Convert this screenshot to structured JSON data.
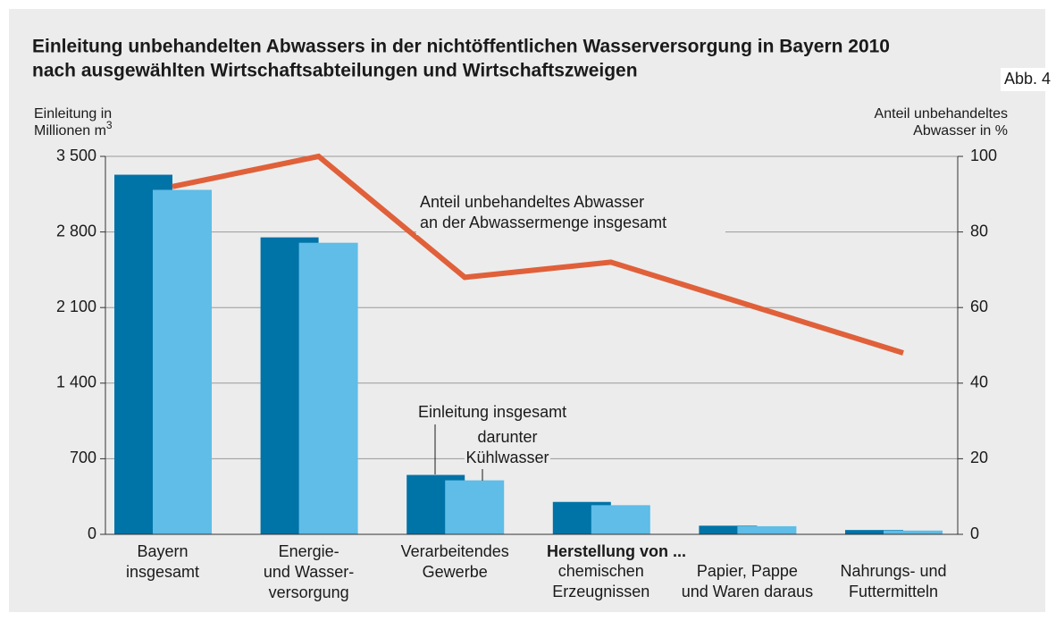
{
  "chart_data": {
    "type": "bar_line",
    "title": [
      "Einleitung unbehandelten Abwassers in der nichtöffentlichen Wasserversorgung in Bayern 2010",
      "nach ausgewählten Wirtschaftsabteilungen und Wirtschaftszweigen"
    ],
    "figure_label": "Abb. 4",
    "ylabel": [
      "Einleitung in",
      "Millionen m",
      "3"
    ],
    "y2label": [
      "Anteil unbehandeltes",
      "Abwasser in %"
    ],
    "group_annotation": "Herstellung von ...",
    "categories": [
      [
        "Bayern",
        "insgesamt"
      ],
      [
        "Energie-",
        "und Wasser-",
        "versorgung"
      ],
      [
        "Verarbeitendes",
        "Gewerbe"
      ],
      [
        "chemischen",
        "Erzeugnissen"
      ],
      [
        "Papier, Pappe",
        "und Waren daraus"
      ],
      [
        "Nahrungs- und",
        "Futtermitteln"
      ]
    ],
    "series": [
      {
        "name": [
          "Einleitung insgesamt"
        ],
        "color": "#0073a7",
        "values": [
          3330,
          2750,
          550,
          300,
          80,
          40
        ]
      },
      {
        "name": [
          "darunter",
          "Kühlwasser"
        ],
        "color": "#5fbde7",
        "values": [
          3190,
          2700,
          500,
          270,
          75,
          35
        ]
      },
      {
        "name": [
          "Anteil unbehandeltes Abwasser",
          "an der Abwassermenge insgesamt"
        ],
        "type": "line",
        "axis": "y2",
        "color": "#e0603a",
        "values": [
          92,
          100,
          68,
          72,
          60,
          48
        ]
      }
    ],
    "ylim": [
      0,
      3500
    ],
    "yticks": [
      0,
      700,
      {
        "value": 1400,
        "label": "1 400"
      },
      {
        "value": 2100,
        "label": "2 100"
      },
      {
        "value": 2800,
        "label": "2 800"
      },
      {
        "value": 3500,
        "label": "3 500"
      }
    ],
    "y2lim": [
      0,
      100
    ],
    "y2ticks": [
      0,
      20,
      40,
      60,
      80,
      100
    ],
    "grid": true
  }
}
